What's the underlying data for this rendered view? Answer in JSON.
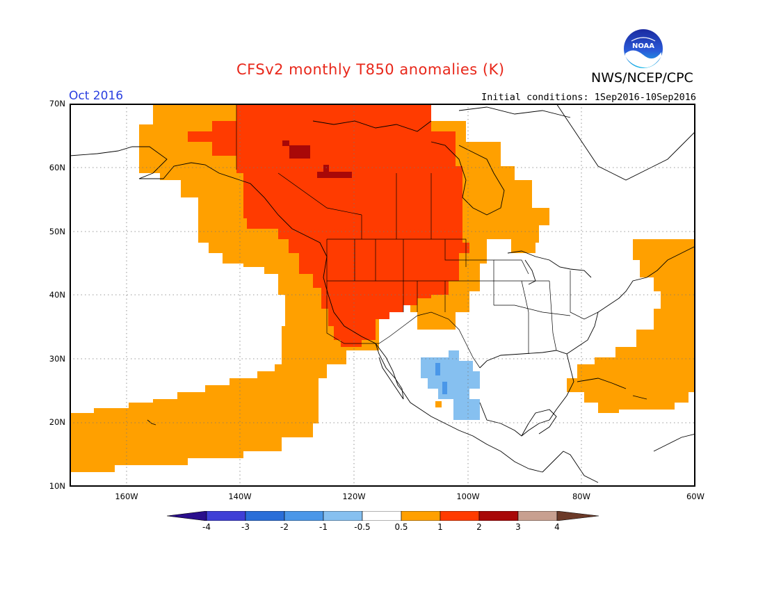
{
  "header": {
    "title": "CFSv2 monthly T850 anomalies (K)",
    "agency": "NWS/NCEP/CPC",
    "logo_text": "NOAA",
    "month": "Oct 2016",
    "initial_conditions": "Initial conditions: 1Sep2016-10Sep2016"
  },
  "map": {
    "projection": "lat-lon",
    "lon_range": [
      -170,
      -60
    ],
    "lat_range": [
      10,
      70
    ],
    "lat_labels": [
      "70N",
      "60N",
      "50N",
      "40N",
      "30N",
      "20N",
      "10N"
    ],
    "lon_labels": [
      "160W",
      "140W",
      "120W",
      "100W",
      "80W",
      "60W"
    ],
    "gridlines": "dotted",
    "regions": [
      {
        "category": "0.5 to 1",
        "area": "eastern North Pacific, Alaska, western Canada and central US margins"
      },
      {
        "category": "1 to 2",
        "area": "western Canada, Yukon to Hudson Bay, western and central United States"
      },
      {
        "category": "2 to 3",
        "area": "small patches in Northwest Territories"
      },
      {
        "category": "-1 to -0.5",
        "area": "north-central Mexico"
      },
      {
        "category": "-2 to -1",
        "area": "small spots in Sierra Madre, Mexico"
      },
      {
        "category": "0.5 to 1",
        "area": "western Atlantic off US East Coast and eastern Canada"
      }
    ]
  },
  "colorbar": {
    "labels": [
      "-4",
      "-3",
      "-2",
      "-1",
      "-0.5",
      "0.5",
      "1",
      "2",
      "3",
      "4"
    ],
    "colors": [
      "#2a0e8c",
      "#3f3fd6",
      "#2a6ed8",
      "#4a97e8",
      "#86c0f0",
      "#ffffff",
      "#ffa000",
      "#ff3b00",
      "#a80808",
      "#c8a090",
      "#6b3a28"
    ]
  },
  "colors": {
    "anom_05_1": "#ffa000",
    "anom_1_2": "#ff3b00",
    "anom_2_3": "#a80808",
    "anom_neg05_neg1": "#86c0f0",
    "anom_neg1_neg2": "#4a97e8",
    "title_red": "#e8271a",
    "month_blue": "#2a3fe0"
  }
}
